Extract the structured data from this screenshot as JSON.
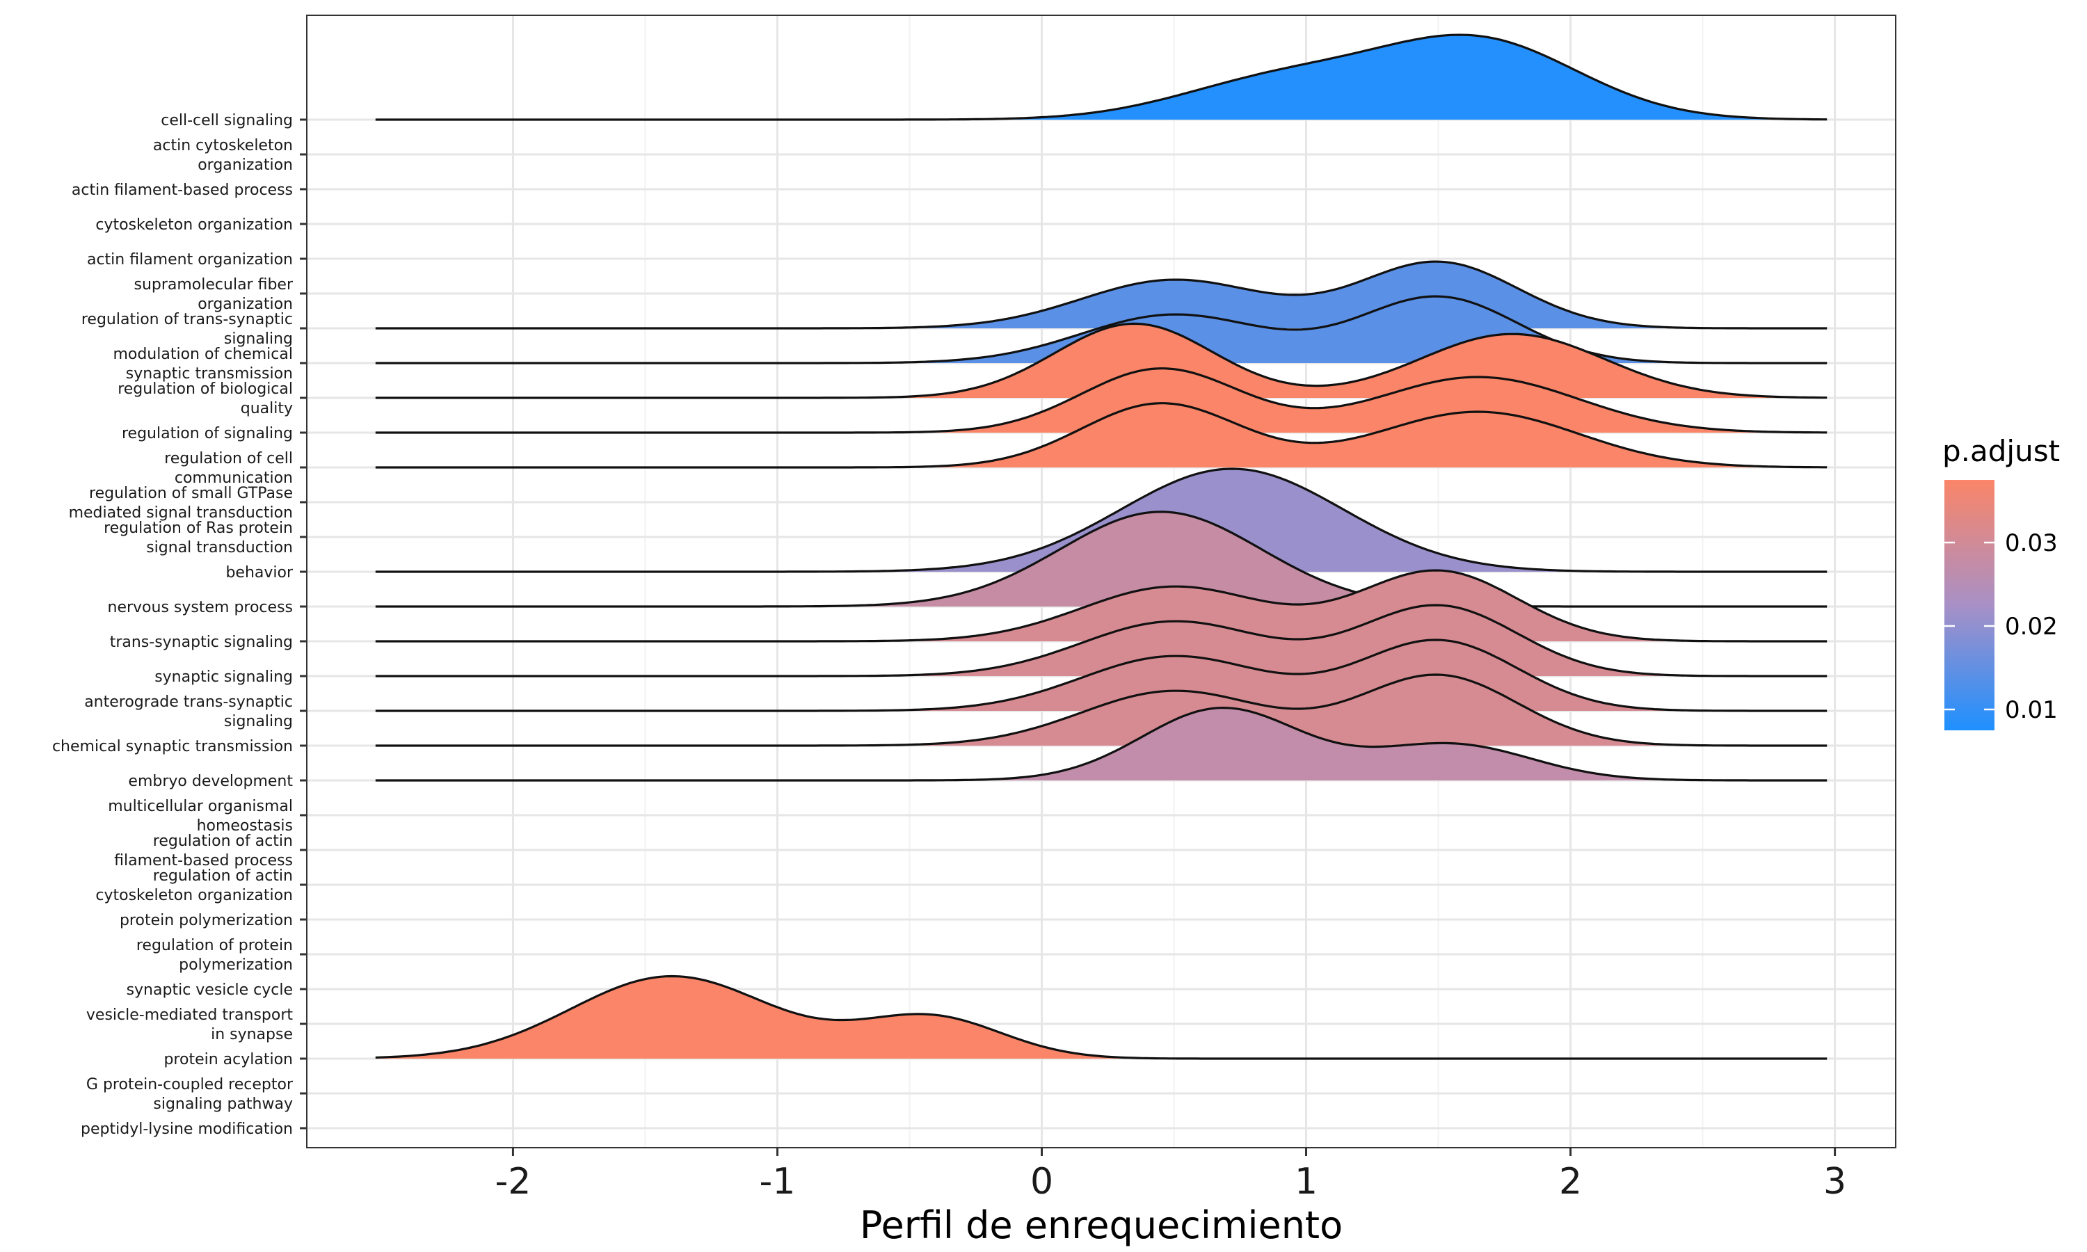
{
  "chart_data": {
    "type": "ridgeline",
    "xlabel": "Perfil de enrequecimiento",
    "xlim": [
      -2.78,
      3.23
    ],
    "x_ticks": [
      "-2",
      "-1",
      "0",
      "1",
      "2",
      "3"
    ],
    "x_tick_values": [
      -2,
      -1,
      0,
      1,
      2,
      3
    ],
    "grid": true,
    "legend": {
      "title": "p.adjust",
      "placement": "right",
      "ticks": [
        "0.01",
        "0.02",
        "0.03"
      ],
      "tick_values": [
        0.01,
        0.02,
        0.03
      ],
      "range": [
        0.0075,
        0.0375
      ],
      "colors": [
        "#1E90FF",
        "#A890C6",
        "#FA8568"
      ]
    },
    "categories": [
      [
        "cell-cell signaling"
      ],
      [
        "actin cytoskeleton",
        "organization"
      ],
      [
        "actin filament-based process"
      ],
      [
        "cytoskeleton organization"
      ],
      [
        "actin filament organization"
      ],
      [
        "supramolecular fiber",
        "organization"
      ],
      [
        "regulation of trans-synaptic",
        "signaling"
      ],
      [
        "modulation of chemical",
        "synaptic transmission"
      ],
      [
        "regulation of biological",
        "quality"
      ],
      [
        "regulation of signaling"
      ],
      [
        "regulation of cell",
        "communication"
      ],
      [
        "regulation of small GTPase",
        "mediated signal transduction"
      ],
      [
        "regulation of Ras protein",
        "signal transduction"
      ],
      [
        "behavior"
      ],
      [
        "nervous system process"
      ],
      [
        "trans-synaptic signaling"
      ],
      [
        "synaptic signaling"
      ],
      [
        "anterograde trans-synaptic",
        "signaling"
      ],
      [
        "chemical synaptic transmission"
      ],
      [
        "embryo development"
      ],
      [
        "multicellular organismal",
        "homeostasis"
      ],
      [
        "regulation of actin",
        "filament-based process"
      ],
      [
        "regulation of actin",
        "cytoskeleton organization"
      ],
      [
        "protein polymerization"
      ],
      [
        "regulation of protein",
        "polymerization"
      ],
      [
        "synaptic vesicle cycle"
      ],
      [
        "vesicle-mediated transport",
        "in synapse"
      ],
      [
        "protein acylation"
      ],
      [
        "G protein-coupled receptor",
        "signaling pathway"
      ],
      [
        "peptidyl-lysine modification"
      ]
    ],
    "series": [
      {
        "row": 0,
        "p_adjust": 0.008,
        "x_range": [
          -2.52,
          2.97
        ],
        "components": [
          [
            0.9,
            0.38,
            0.38
          ],
          [
            1.65,
            0.38,
            0.76
          ]
        ]
      },
      {
        "row": 6,
        "p_adjust": 0.014,
        "x_range": [
          -2.52,
          2.97
        ],
        "components": [
          [
            0.5,
            0.35,
            0.47
          ],
          [
            1.5,
            0.3,
            0.64
          ]
        ]
      },
      {
        "row": 7,
        "p_adjust": 0.014,
        "x_range": [
          -2.52,
          2.97
        ],
        "components": [
          [
            0.5,
            0.35,
            0.47
          ],
          [
            1.5,
            0.3,
            0.64
          ]
        ]
      },
      {
        "row": 8,
        "p_adjust": 0.0375,
        "x_range": [
          -2.52,
          2.97
        ],
        "components": [
          [
            0.35,
            0.3,
            0.72
          ],
          [
            1.78,
            0.35,
            0.62
          ]
        ]
      },
      {
        "row": 9,
        "p_adjust": 0.0375,
        "x_range": [
          -2.52,
          2.97
        ],
        "components": [
          [
            0.45,
            0.3,
            0.62
          ],
          [
            1.65,
            0.38,
            0.54
          ]
        ]
      },
      {
        "row": 10,
        "p_adjust": 0.0375,
        "x_range": [
          -2.52,
          2.97
        ],
        "components": [
          [
            0.45,
            0.3,
            0.62
          ],
          [
            1.65,
            0.38,
            0.54
          ]
        ]
      },
      {
        "row": 13,
        "p_adjust": 0.021,
        "x_range": [
          -2.52,
          2.97
        ],
        "components": [
          [
            0.72,
            0.42,
            1.0
          ]
        ]
      },
      {
        "row": 14,
        "p_adjust": 0.028,
        "x_range": [
          -2.52,
          2.97
        ],
        "components": [
          [
            0.45,
            0.38,
            0.92
          ]
        ]
      },
      {
        "row": 15,
        "p_adjust": 0.031,
        "x_range": [
          -2.52,
          2.97
        ],
        "components": [
          [
            0.5,
            0.35,
            0.53
          ],
          [
            1.5,
            0.3,
            0.68
          ]
        ]
      },
      {
        "row": 16,
        "p_adjust": 0.031,
        "x_range": [
          -2.52,
          2.97
        ],
        "components": [
          [
            0.5,
            0.35,
            0.53
          ],
          [
            1.5,
            0.3,
            0.68
          ]
        ]
      },
      {
        "row": 17,
        "p_adjust": 0.031,
        "x_range": [
          -2.52,
          2.97
        ],
        "components": [
          [
            0.5,
            0.35,
            0.53
          ],
          [
            1.5,
            0.3,
            0.68
          ]
        ]
      },
      {
        "row": 18,
        "p_adjust": 0.031,
        "x_range": [
          -2.52,
          2.97
        ],
        "components": [
          [
            0.5,
            0.35,
            0.53
          ],
          [
            1.5,
            0.3,
            0.68
          ]
        ]
      },
      {
        "row": 19,
        "p_adjust": 0.027,
        "x_range": [
          -2.52,
          2.97
        ],
        "components": [
          [
            0.68,
            0.3,
            0.7
          ],
          [
            1.55,
            0.3,
            0.35
          ]
        ]
      },
      {
        "row": 27,
        "p_adjust": 0.0375,
        "x_range": [
          -2.52,
          2.97
        ],
        "components": [
          [
            -1.4,
            0.38,
            0.8
          ],
          [
            -0.42,
            0.27,
            0.4
          ]
        ]
      }
    ]
  }
}
